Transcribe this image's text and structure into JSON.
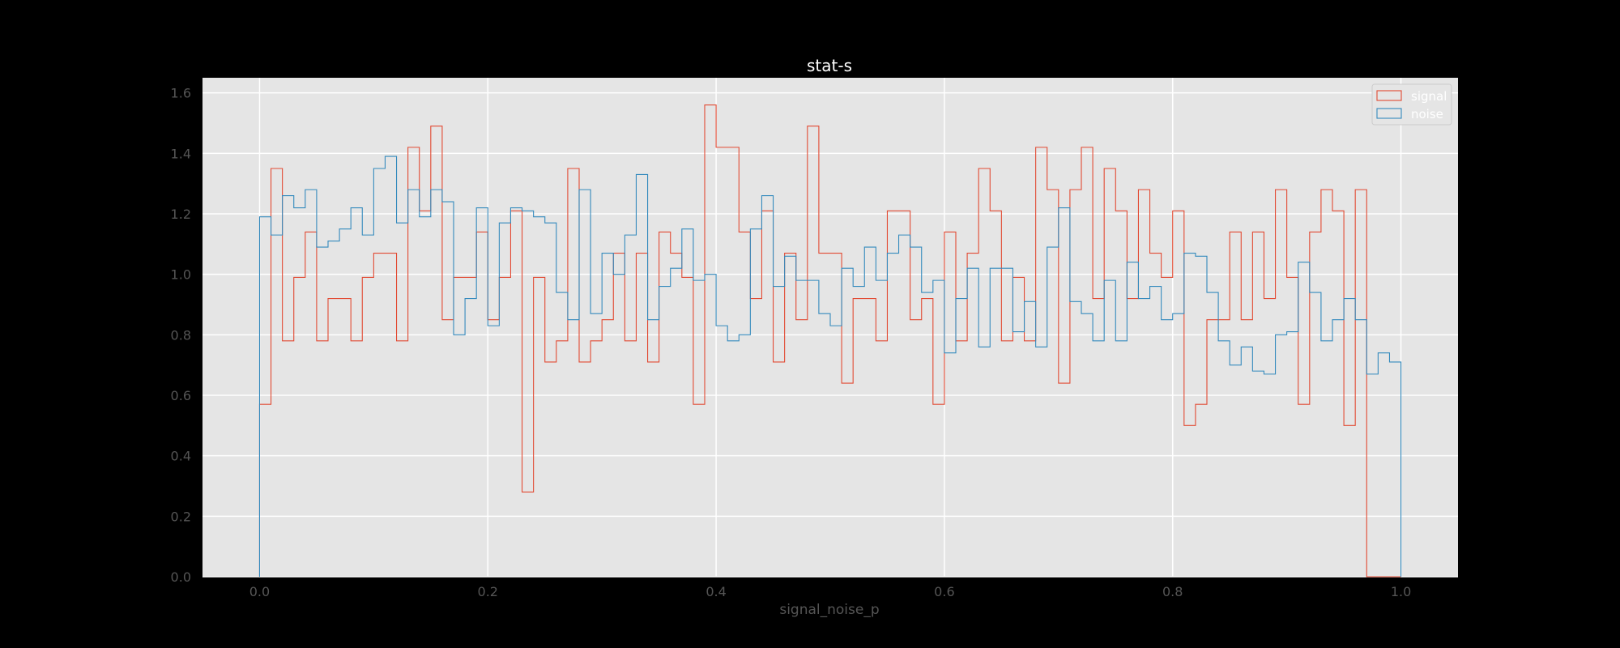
{
  "chart_data": {
    "type": "histogram",
    "title": "stat-s",
    "xlabel": "signal_noise_p",
    "ylabel": "",
    "xlim": [
      -0.05,
      1.05
    ],
    "ylim": [
      0,
      1.65
    ],
    "x_ticks": [
      "0.0",
      "0.2",
      "0.4",
      "0.6",
      "0.8",
      "1.0"
    ],
    "y_ticks": [
      "0.0",
      "0.2",
      "0.4",
      "0.6",
      "0.8",
      "1.0",
      "1.2",
      "1.4",
      "1.6"
    ],
    "grid": true,
    "legend_position": "top-right",
    "bin_edges_range": [
      0,
      1
    ],
    "bins": 100,
    "histtype": "step",
    "density": true,
    "series": [
      {
        "name": "signal",
        "color": "#E24A33",
        "values": [
          0.57,
          1.35,
          0.78,
          0.99,
          1.14,
          0.78,
          0.92,
          0.92,
          0.78,
          0.99,
          1.07,
          1.07,
          0.78,
          1.42,
          1.21,
          1.49,
          0.85,
          0.99,
          0.99,
          1.14,
          0.85,
          0.99,
          1.21,
          0.28,
          0.99,
          0.71,
          0.78,
          1.35,
          0.71,
          0.78,
          0.85,
          1.07,
          0.78,
          1.07,
          0.71,
          1.14,
          1.07,
          0.99,
          0.57,
          1.56,
          1.42,
          1.42,
          1.14,
          0.92,
          1.21,
          0.71,
          1.07,
          0.85,
          1.49,
          1.07,
          1.07,
          0.64,
          0.92,
          0.92,
          0.78,
          1.21,
          1.21,
          0.85,
          0.92,
          0.57,
          1.14,
          0.78,
          1.07,
          1.35,
          1.21,
          0.78,
          0.99,
          0.78,
          1.42,
          1.28,
          0.64,
          1.28,
          1.42,
          0.92,
          1.35,
          1.21,
          0.92,
          1.28,
          1.07,
          0.99,
          1.21,
          0.5,
          0.57,
          0.85,
          0.85,
          1.14,
          0.85,
          1.14,
          0.92,
          1.28,
          0.99,
          0.57,
          1.14,
          1.28,
          1.21,
          0.5,
          1.28,
          0.0,
          0.0,
          0.0
        ]
      },
      {
        "name": "noise",
        "color": "#348ABD",
        "values": [
          1.19,
          1.13,
          1.26,
          1.22,
          1.28,
          1.09,
          1.11,
          1.15,
          1.22,
          1.13,
          1.35,
          1.39,
          1.17,
          1.28,
          1.19,
          1.28,
          1.24,
          0.8,
          0.92,
          1.22,
          0.83,
          1.17,
          1.22,
          1.21,
          1.19,
          1.17,
          0.94,
          0.85,
          1.28,
          0.87,
          1.07,
          1.0,
          1.13,
          1.33,
          0.85,
          0.96,
          1.02,
          1.15,
          0.98,
          1.0,
          0.83,
          0.78,
          0.8,
          1.15,
          1.26,
          0.96,
          1.06,
          0.98,
          0.98,
          0.87,
          0.83,
          1.02,
          0.96,
          1.09,
          0.98,
          1.07,
          1.13,
          1.09,
          0.94,
          0.98,
          0.74,
          0.92,
          1.02,
          0.76,
          1.02,
          1.02,
          0.81,
          0.91,
          0.76,
          1.09,
          1.22,
          0.91,
          0.87,
          0.78,
          0.98,
          0.78,
          1.04,
          0.92,
          0.96,
          0.85,
          0.87,
          1.07,
          1.06,
          0.94,
          0.78,
          0.7,
          0.76,
          0.68,
          0.67,
          0.8,
          0.81,
          1.04,
          0.94,
          0.78,
          0.85,
          0.92,
          0.85,
          0.67,
          0.74,
          0.71
        ]
      }
    ]
  },
  "colors": {
    "background": "#000000",
    "plot_background": "#E5E5E5",
    "grid": "#FFFFFF",
    "tick_text": "#555555",
    "title_text": "#FFFFFF"
  }
}
